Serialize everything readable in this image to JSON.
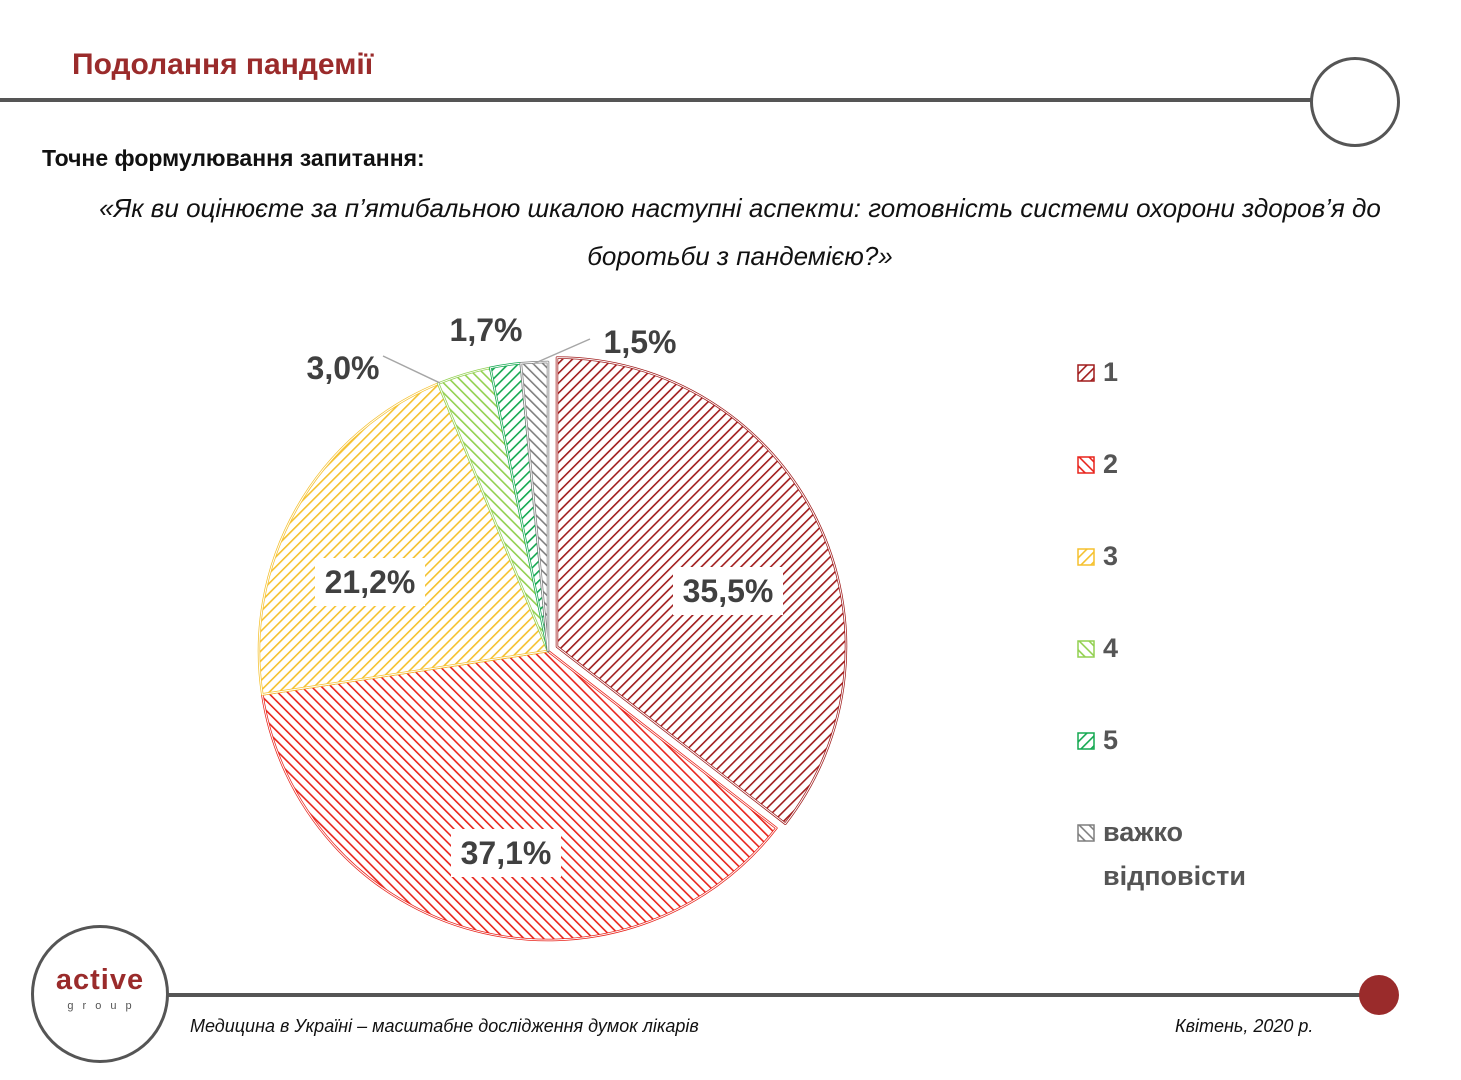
{
  "header": {
    "title": "Подолання пандемії"
  },
  "question": {
    "heading": "Точне формулювання запитання:",
    "text": "«Як ви оцінюєте за п’ятибальною шкалою наступні аспекти: готовність системи охорони здоров’я до боротьби з пандемією?»"
  },
  "chart_data": {
    "type": "pie",
    "title": "",
    "unit": "%",
    "slices": [
      {
        "name": "1",
        "value": 35.5,
        "label": "35,5%",
        "color": "#a01c1c",
        "exploded": true
      },
      {
        "name": "2",
        "value": 37.1,
        "label": "37,1%",
        "color": "#e8231b",
        "exploded": false
      },
      {
        "name": "3",
        "value": 21.2,
        "label": "21,2%",
        "color": "#f5c12e",
        "exploded": false
      },
      {
        "name": "4",
        "value": 3.0,
        "label": "3,0%",
        "color": "#92d050",
        "exploded": false
      },
      {
        "name": "5",
        "value": 1.7,
        "label": "1,7%",
        "color": "#13a850",
        "exploded": false
      },
      {
        "name": "важко відповісти",
        "value": 1.5,
        "label": "1,5%",
        "color": "#7f7f7f",
        "exploded": false
      }
    ],
    "legend": {
      "position": "right",
      "items": [
        "1",
        "2",
        "3",
        "4",
        "5",
        "важко відповісти"
      ]
    }
  },
  "logo": {
    "main": "active",
    "sub": "group"
  },
  "footer": {
    "left": "Медицина в Україні – масштабне дослідження думок лікарів",
    "right": "Квітень, 2020 р."
  }
}
